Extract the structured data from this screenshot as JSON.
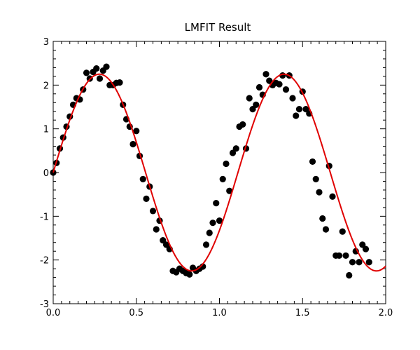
{
  "chart_data": {
    "type": "scatter",
    "title": "LMFIT Result",
    "xlabel": "",
    "ylabel": "",
    "xlim": [
      0.0,
      2.0
    ],
    "ylim": [
      -3,
      3
    ],
    "x_ticks": [
      0.0,
      0.5,
      1.0,
      1.5,
      2.0
    ],
    "x_tick_labels": [
      "0.0",
      "0.5",
      "1.0",
      "1.5",
      "2.0"
    ],
    "y_ticks": [
      -3,
      -2,
      -1,
      0,
      1,
      2,
      3
    ],
    "y_tick_labels": [
      "-3",
      "-2",
      "-1",
      "0",
      "1",
      "2",
      "3"
    ],
    "grid": false,
    "legend": "none",
    "colors": {
      "points": "#000000",
      "fit": "#e00000",
      "axes": "#000000"
    },
    "series": [
      {
        "kind": "scatter",
        "points": [
          [
            0.0,
            0.0
          ],
          [
            0.02,
            0.22
          ],
          [
            0.04,
            0.55
          ],
          [
            0.06,
            0.8
          ],
          [
            0.08,
            1.05
          ],
          [
            0.1,
            1.28
          ],
          [
            0.12,
            1.55
          ],
          [
            0.14,
            1.7
          ],
          [
            0.16,
            1.67
          ],
          [
            0.18,
            1.9
          ],
          [
            0.2,
            2.28
          ],
          [
            0.22,
            2.15
          ],
          [
            0.24,
            2.3
          ],
          [
            0.26,
            2.38
          ],
          [
            0.28,
            2.15
          ],
          [
            0.3,
            2.33
          ],
          [
            0.32,
            2.42
          ],
          [
            0.34,
            2.0
          ],
          [
            0.36,
            2.0
          ],
          [
            0.38,
            2.05
          ],
          [
            0.4,
            2.06
          ],
          [
            0.42,
            1.55
          ],
          [
            0.44,
            1.22
          ],
          [
            0.46,
            1.05
          ],
          [
            0.48,
            0.65
          ],
          [
            0.5,
            0.95
          ],
          [
            0.52,
            0.38
          ],
          [
            0.54,
            -0.15
          ],
          [
            0.56,
            -0.6
          ],
          [
            0.58,
            -0.32
          ],
          [
            0.6,
            -0.88
          ],
          [
            0.62,
            -1.3
          ],
          [
            0.64,
            -1.1
          ],
          [
            0.66,
            -1.55
          ],
          [
            0.68,
            -1.65
          ],
          [
            0.7,
            -1.75
          ],
          [
            0.72,
            -2.25
          ],
          [
            0.74,
            -2.28
          ],
          [
            0.76,
            -2.2
          ],
          [
            0.78,
            -2.25
          ],
          [
            0.8,
            -2.3
          ],
          [
            0.82,
            -2.33
          ],
          [
            0.84,
            -2.18
          ],
          [
            0.86,
            -2.25
          ],
          [
            0.88,
            -2.2
          ],
          [
            0.9,
            -2.15
          ],
          [
            0.92,
            -1.65
          ],
          [
            0.94,
            -1.38
          ],
          [
            0.96,
            -1.15
          ],
          [
            0.98,
            -0.7
          ],
          [
            1.0,
            -1.1
          ],
          [
            1.02,
            -0.15
          ],
          [
            1.04,
            0.2
          ],
          [
            1.06,
            -0.42
          ],
          [
            1.08,
            0.45
          ],
          [
            1.1,
            0.55
          ],
          [
            1.12,
            1.05
          ],
          [
            1.14,
            1.1
          ],
          [
            1.16,
            0.55
          ],
          [
            1.18,
            1.7
          ],
          [
            1.2,
            1.45
          ],
          [
            1.22,
            1.55
          ],
          [
            1.24,
            1.95
          ],
          [
            1.26,
            1.78
          ],
          [
            1.28,
            2.25
          ],
          [
            1.3,
            2.1
          ],
          [
            1.32,
            2.0
          ],
          [
            1.34,
            2.05
          ],
          [
            1.36,
            2.02
          ],
          [
            1.38,
            2.22
          ],
          [
            1.4,
            1.9
          ],
          [
            1.42,
            2.22
          ],
          [
            1.44,
            1.7
          ],
          [
            1.46,
            1.3
          ],
          [
            1.48,
            1.45
          ],
          [
            1.5,
            1.85
          ],
          [
            1.52,
            1.45
          ],
          [
            1.54,
            1.35
          ],
          [
            1.56,
            0.25
          ],
          [
            1.58,
            -0.15
          ],
          [
            1.6,
            -0.45
          ],
          [
            1.62,
            -1.05
          ],
          [
            1.64,
            -1.3
          ],
          [
            1.66,
            0.15
          ],
          [
            1.68,
            -0.55
          ],
          [
            1.7,
            -1.9
          ],
          [
            1.72,
            -1.9
          ],
          [
            1.74,
            -1.35
          ],
          [
            1.76,
            -1.9
          ],
          [
            1.78,
            -2.35
          ],
          [
            1.8,
            -2.05
          ],
          [
            1.82,
            -1.8
          ],
          [
            1.84,
            -2.05
          ],
          [
            1.86,
            -1.65
          ],
          [
            1.88,
            -1.75
          ],
          [
            1.9,
            -2.05
          ]
        ]
      },
      {
        "kind": "line",
        "equation": "y = 2.25 * sin(2π * 0.9 * x)",
        "amplitude": 2.25,
        "frequency": 0.9,
        "phase": 0.0
      }
    ]
  }
}
